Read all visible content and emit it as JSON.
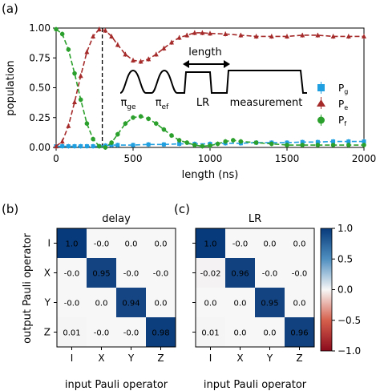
{
  "panel_labels": {
    "a": "(a)",
    "b": "(b)",
    "c": "(c)"
  },
  "colors": {
    "pg": "#1f9fe0",
    "pe": "#a52a2a",
    "pf": "#2ca02c",
    "map_pos": "#073a7a",
    "map_neg": "#8b0a1c"
  },
  "chart_data": [
    {
      "type": "line",
      "panel": "(a)",
      "xlabel": "length (ns)",
      "ylabel": "population",
      "xlim": [
        0,
        2000
      ],
      "ylim": [
        0,
        1.0
      ],
      "xticks": [
        "0",
        "500",
        "1000",
        "1500",
        "2000"
      ],
      "yticks": [
        "0.00",
        "0.25",
        "0.50",
        "0.75",
        "1.00"
      ],
      "legend_position": "center-right",
      "vline_x": 300,
      "series": [
        {
          "name": "P_g",
          "label_main": "P",
          "label_sub": "g",
          "marker": "square",
          "x": [
            0,
            40,
            80,
            120,
            160,
            200,
            240,
            280,
            320,
            360,
            400,
            500,
            600,
            700,
            800,
            900,
            1000,
            1100,
            1200,
            1300,
            1400,
            1500,
            1600,
            1700,
            1800,
            1900,
            2000
          ],
          "y": [
            0.01,
            0.01,
            0.01,
            0.01,
            0.01,
            0.01,
            0.01,
            0.01,
            0.015,
            0.02,
            0.02,
            0.02,
            0.025,
            0.025,
            0.03,
            0.03,
            0.03,
            0.035,
            0.035,
            0.04,
            0.04,
            0.04,
            0.045,
            0.045,
            0.05,
            0.05,
            0.05
          ]
        },
        {
          "name": "P_e",
          "label_main": "P",
          "label_sub": "e",
          "marker": "triangle",
          "x": [
            0,
            40,
            80,
            120,
            160,
            200,
            240,
            280,
            320,
            360,
            400,
            450,
            500,
            550,
            600,
            650,
            700,
            750,
            800,
            850,
            900,
            950,
            1000,
            1100,
            1200,
            1300,
            1400,
            1500,
            1600,
            1700,
            1800,
            1900,
            2000
          ],
          "y": [
            0.01,
            0.05,
            0.18,
            0.38,
            0.6,
            0.8,
            0.93,
            0.99,
            0.98,
            0.93,
            0.86,
            0.78,
            0.73,
            0.72,
            0.74,
            0.78,
            0.83,
            0.88,
            0.92,
            0.94,
            0.96,
            0.96,
            0.955,
            0.95,
            0.94,
            0.93,
            0.93,
            0.93,
            0.94,
            0.94,
            0.93,
            0.93,
            0.93
          ]
        },
        {
          "name": "P_f",
          "label_main": "P",
          "label_sub": "f",
          "marker": "circle",
          "x": [
            0,
            40,
            80,
            120,
            160,
            200,
            240,
            280,
            320,
            360,
            400,
            450,
            500,
            550,
            600,
            650,
            700,
            750,
            800,
            850,
            900,
            950,
            1000,
            1050,
            1100,
            1150,
            1200,
            1300,
            1400,
            1500,
            1600,
            1700,
            1800,
            1900,
            2000
          ],
          "y": [
            0.99,
            0.95,
            0.82,
            0.62,
            0.4,
            0.2,
            0.07,
            0.01,
            0.0,
            0.04,
            0.11,
            0.2,
            0.25,
            0.26,
            0.24,
            0.2,
            0.15,
            0.1,
            0.06,
            0.04,
            0.02,
            0.01,
            0.015,
            0.03,
            0.05,
            0.06,
            0.05,
            0.04,
            0.03,
            0.02,
            0.02,
            0.02,
            0.02,
            0.02,
            0.02
          ]
        }
      ],
      "inset": {
        "pulse_labels": [
          {
            "main": "π",
            "sub": "ge"
          },
          {
            "main": "π",
            "sub": "ef"
          },
          {
            "main": "LR",
            "sub": ""
          },
          {
            "main": "measurement",
            "sub": ""
          }
        ],
        "length_label": "length"
      }
    },
    {
      "type": "heatmap",
      "panel": "(b)",
      "title": "delay",
      "xlabel": "input Pauli operator",
      "ylabel": "output Pauli operator",
      "x_categories": [
        "I",
        "X",
        "Y",
        "Z"
      ],
      "y_categories": [
        "I",
        "X",
        "Y",
        "Z"
      ],
      "values": [
        [
          "1.0",
          "-0.0",
          "0.0",
          "0.0"
        ],
        [
          "-0.0",
          "0.95",
          "-0.0",
          "-0.0"
        ],
        [
          "-0.0",
          "0.0",
          "0.94",
          "0.0"
        ],
        [
          "0.01",
          "-0.0",
          "-0.0",
          "0.98"
        ]
      ]
    },
    {
      "type": "heatmap",
      "panel": "(c)",
      "title": "LR",
      "xlabel": "input Pauli operator",
      "x_categories": [
        "I",
        "X",
        "Y",
        "Z"
      ],
      "y_categories": [
        "I",
        "X",
        "Y",
        "Z"
      ],
      "values": [
        [
          "1.0",
          "-0.0",
          "0.0",
          "0.0"
        ],
        [
          "-0.02",
          "0.96",
          "-0.0",
          "-0.0"
        ],
        [
          "0.0",
          "0.0",
          "0.95",
          "0.0"
        ],
        [
          "0.01",
          "0.0",
          "0.0",
          "0.96"
        ]
      ],
      "colorbar": {
        "range": [
          -1.0,
          1.0
        ],
        "ticks": [
          "1.0",
          "0.5",
          "0.0",
          "−0.5",
          "−1.0"
        ]
      }
    }
  ]
}
